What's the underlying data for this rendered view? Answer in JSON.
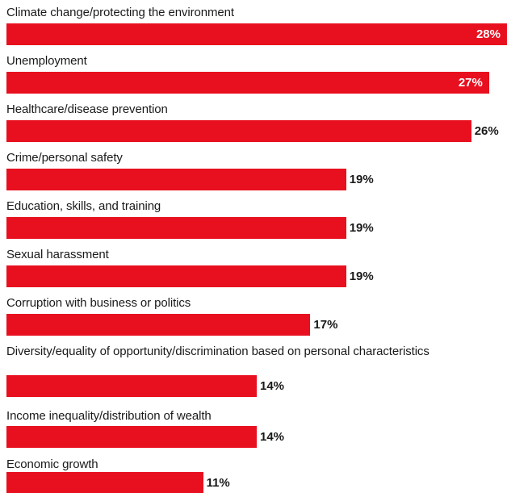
{
  "colors": {
    "bar": "#e8101f",
    "text": "#1a1a1a",
    "inside_label": "#ffffff"
  },
  "chart_data": {
    "type": "bar",
    "orientation": "horizontal",
    "categories": [
      "Climate change/protecting the environment",
      "Unemployment",
      "Healthcare/disease prevention",
      "Crime/personal safety",
      "Education, skills, and training",
      "Sexual harassment",
      "Corruption with business or politics",
      "Diversity/equality of opportunity/discrimination based on personal characteristics",
      "Income inequality/distribution of wealth",
      "Economic growth"
    ],
    "values": [
      28,
      27,
      26,
      19,
      19,
      19,
      17,
      14,
      14,
      11
    ],
    "value_labels": [
      "28%",
      "27%",
      "26%",
      "19%",
      "19%",
      "19%",
      "17%",
      "14%",
      "14%",
      "11%"
    ],
    "xlim": [
      0,
      28
    ],
    "grid": false,
    "legend": "none"
  }
}
